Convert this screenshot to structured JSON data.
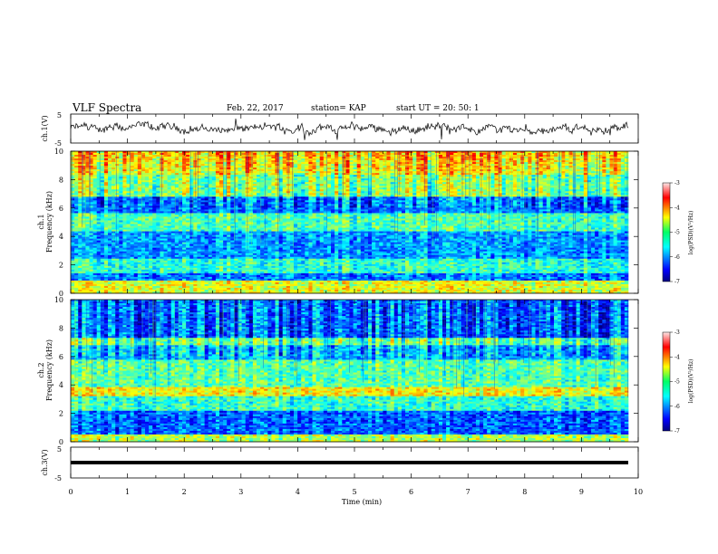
{
  "header": {
    "title": "VLF Spectra",
    "date": "Feb. 22, 2017",
    "station": "station= KAP",
    "start": "start  UT =   20: 50: 1"
  },
  "chart_data": [
    {
      "type": "line",
      "panel": "ch1-waveform",
      "ylabel": "ch.1(V)",
      "ylim": [
        -5,
        5
      ],
      "yticks": [
        "5",
        "-5"
      ],
      "xlim": [
        0,
        10
      ],
      "description_note": ""
    },
    {
      "type": "heatmap",
      "panel": "ch1-spectrogram",
      "ylabel": [
        "ch.1",
        "Frequency (kHz)"
      ],
      "ylim": [
        0,
        10
      ],
      "yticks": [
        "0",
        "2",
        "4",
        "6",
        "8",
        "10"
      ],
      "xlim": [
        0,
        10
      ],
      "colorbar": {
        "label": "log(PSD)(V²/Hz)",
        "range": [
          -7,
          -3
        ],
        "ticks": [
          "-3",
          "-4",
          "-5",
          "-6",
          "-7"
        ]
      }
    },
    {
      "type": "heatmap",
      "panel": "ch2-spectrogram",
      "ylabel": [
        "ch.2",
        "Frequency (kHz)"
      ],
      "ylim": [
        0,
        10
      ],
      "yticks": [
        "0",
        "2",
        "4",
        "6",
        "8",
        "10"
      ],
      "xlim": [
        0,
        10
      ],
      "colorbar": {
        "label": "log(PSD)(V²/Hz)",
        "range": [
          -7,
          -3
        ],
        "ticks": [
          "-3",
          "-4",
          "-5",
          "-6",
          "-7"
        ]
      }
    },
    {
      "type": "line",
      "panel": "ch3-waveform",
      "ylabel": "ch.3(V)",
      "ylim": [
        -5,
        5
      ],
      "yticks": [
        "5",
        "-5"
      ],
      "xlim": [
        0,
        10
      ],
      "values": [
        0,
        0
      ]
    }
  ],
  "xaxis": {
    "label": "Time (min)",
    "ticks": [
      "0",
      "1",
      "2",
      "3",
      "4",
      "5",
      "6",
      "7",
      "8",
      "9",
      "10"
    ]
  }
}
